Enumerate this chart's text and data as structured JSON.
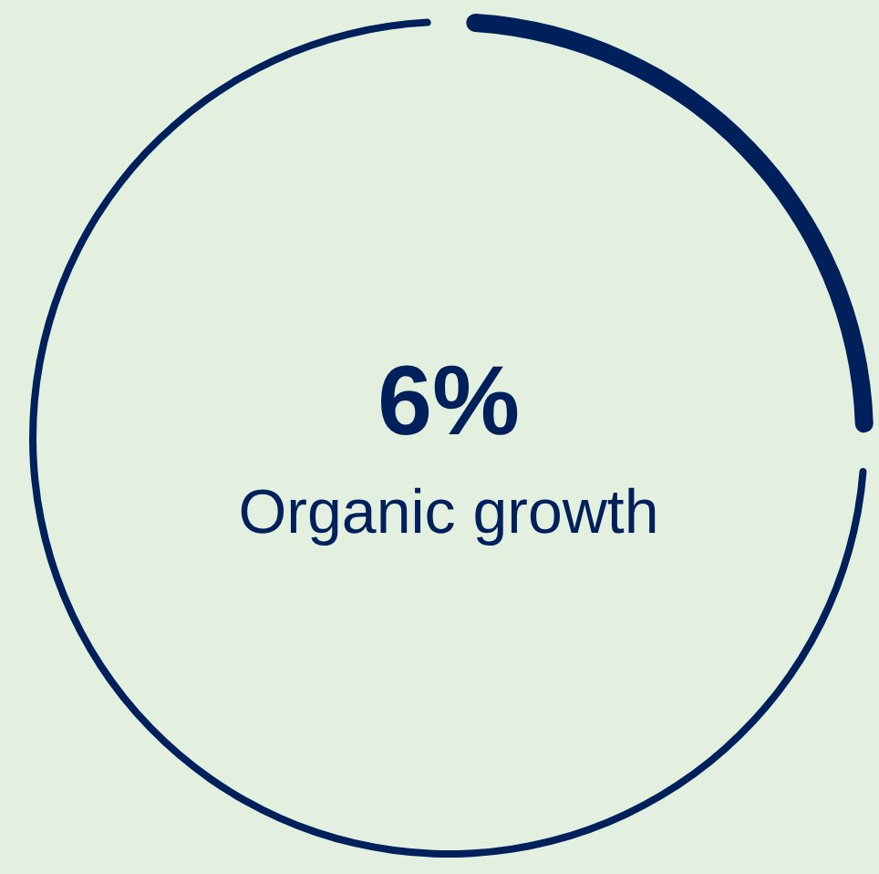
{
  "chart_data": {
    "type": "donut",
    "categories": [
      null,
      null
    ],
    "values": [
      25,
      75
    ],
    "colors": [
      "#00205b",
      "#00205b"
    ],
    "annotations": [
      "6%",
      "Organic growth"
    ]
  }
}
